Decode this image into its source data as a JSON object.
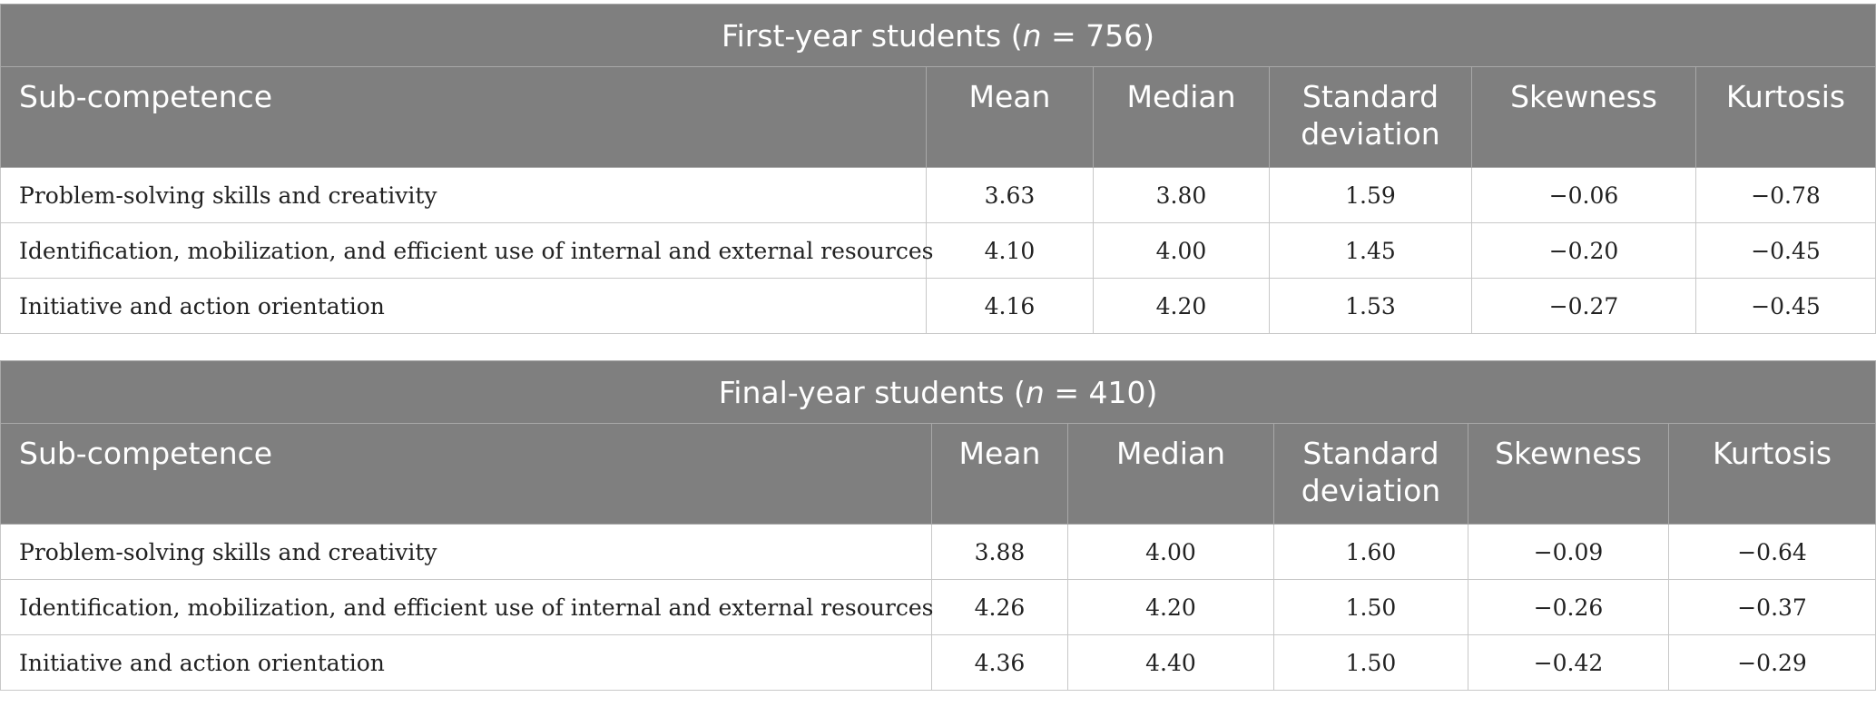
{
  "tables": [
    {
      "group": "First-year students",
      "n_label": "n",
      "n_value": "756",
      "headers": [
        "Sub-competence",
        "Mean",
        "Median",
        "Standard deviation",
        "Skewness",
        "Kurtosis"
      ],
      "rows": [
        [
          "Problem-solving skills and creativity",
          "3.63",
          "3.80",
          "1.59",
          "−0.06",
          "−0.78"
        ],
        [
          "Identification, mobilization, and efficient use of internal and external resources",
          "4.10",
          "4.00",
          "1.45",
          "−0.20",
          "−0.45"
        ],
        [
          "Initiative and action orientation",
          "4.16",
          "4.20",
          "1.53",
          "−0.27",
          "−0.45"
        ]
      ]
    },
    {
      "group": "Final-year students",
      "n_label": "n",
      "n_value": "410",
      "headers": [
        "Sub-competence",
        "Mean",
        "Median",
        "Standard deviation",
        "Skewness",
        "Kurtosis"
      ],
      "rows": [
        [
          "Problem-solving skills and creativity",
          "3.88",
          "4.00",
          "1.60",
          "−0.09",
          "−0.64"
        ],
        [
          "Identification, mobilization, and efficient use of internal and external resources",
          "4.26",
          "4.20",
          "1.50",
          "−0.26",
          "−0.37"
        ],
        [
          "Initiative and action orientation",
          "4.36",
          "4.40",
          "1.50",
          "−0.42",
          "−0.29"
        ]
      ]
    }
  ],
  "colors": {
    "header_bg": "#7f7f7f",
    "header_text": "#ffffff",
    "border": "#c8c8c8"
  }
}
